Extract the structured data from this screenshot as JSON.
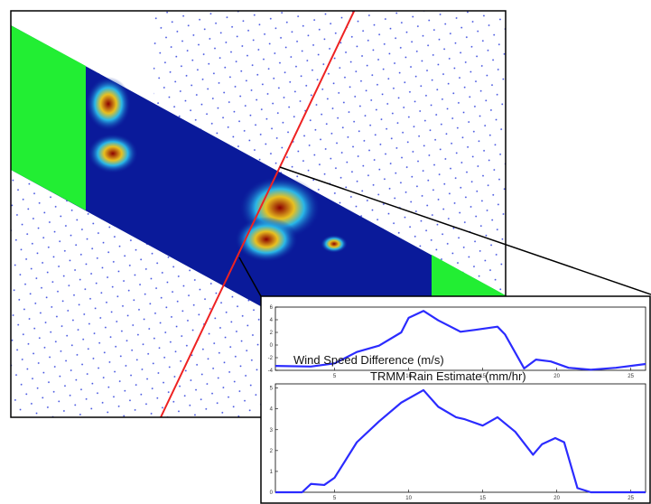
{
  "chart_data": [
    {
      "type": "line",
      "title": "Wind Speed Difference (m/s)",
      "x": [
        1,
        3.4,
        5,
        6.5,
        8,
        9.5,
        10,
        11,
        12,
        13.5,
        14.5,
        16,
        16.5,
        17.8,
        18.6,
        19.6,
        20.8,
        22.3,
        24,
        26
      ],
      "series": [
        {
          "color": "#2b2bff",
          "values": [
            -3.3,
            -3.4,
            -2.9,
            -1.1,
            -0.1,
            2,
            4.3,
            5.4,
            3.9,
            2.1,
            2.4,
            2.9,
            1.7,
            -3.7,
            -2.3,
            -2.6,
            -3.6,
            -3.9,
            -3.6,
            -3.0
          ]
        }
      ],
      "xlim": [
        1,
        26
      ],
      "ylim": [
        -4,
        6
      ],
      "xticks": [
        5,
        10,
        15,
        20,
        25
      ],
      "yticks": [
        -4,
        -2,
        0,
        2,
        4,
        6
      ]
    },
    {
      "type": "line",
      "title": "TRMM Rain Estimate (mm/hr)",
      "x": [
        1,
        2.8,
        3.4,
        4.3,
        5,
        6.5,
        8,
        9.5,
        11,
        12,
        13.2,
        13.8,
        15,
        16,
        17.2,
        18.4,
        19,
        19.9,
        20.5,
        21.4,
        22.3,
        26
      ],
      "series": [
        {
          "color": "#2b2bff",
          "values": [
            0,
            0,
            0.4,
            0.35,
            0.7,
            2.4,
            3.4,
            4.3,
            4.9,
            4.1,
            3.6,
            3.5,
            3.2,
            3.6,
            2.9,
            1.8,
            2.3,
            2.6,
            2.4,
            0.2,
            0,
            0
          ]
        }
      ],
      "xlim": [
        1,
        26
      ],
      "ylim": [
        0,
        5.2
      ],
      "xticks": [
        5,
        10,
        15,
        20,
        25
      ],
      "yticks": [
        0,
        1,
        2,
        3,
        4,
        5
      ]
    }
  ]
}
